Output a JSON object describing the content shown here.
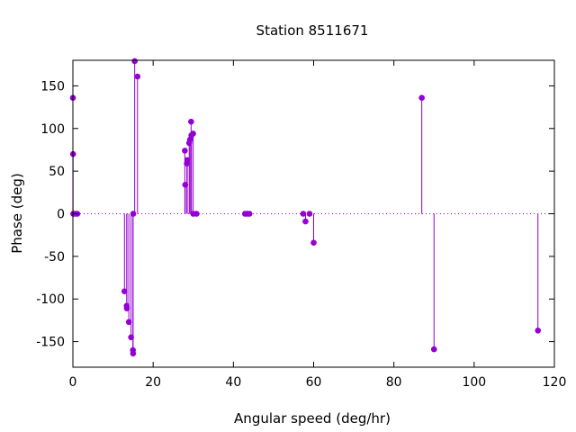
{
  "chart_data": {
    "type": "scatter",
    "title": "Station 8511671",
    "xlabel": "Angular speed (deg/hr)",
    "ylabel": "Phase (deg)",
    "xlim": [
      0,
      120
    ],
    "ylim": [
      -180,
      180
    ],
    "xticks": [
      0,
      20,
      40,
      60,
      80,
      100,
      120
    ],
    "yticks": [
      -150,
      -100,
      -50,
      0,
      50,
      100,
      150
    ],
    "grid": false,
    "legend": "none",
    "zero_line": "dotted",
    "style": "impulses-with-points",
    "color": "#9400d3",
    "points": [
      {
        "x": 0.0,
        "y": 136
      },
      {
        "x": 0.04,
        "y": 70
      },
      {
        "x": 0.08,
        "y": 0
      },
      {
        "x": 0.55,
        "y": 0
      },
      {
        "x": 1.1,
        "y": 0
      },
      {
        "x": 12.85,
        "y": -91
      },
      {
        "x": 13.4,
        "y": -108
      },
      {
        "x": 13.45,
        "y": -111
      },
      {
        "x": 13.94,
        "y": -127
      },
      {
        "x": 14.5,
        "y": -145
      },
      {
        "x": 14.96,
        "y": -160
      },
      {
        "x": 15.0,
        "y": -164
      },
      {
        "x": 15.04,
        "y": 0
      },
      {
        "x": 15.4,
        "y": 179
      },
      {
        "x": 16.1,
        "y": 161
      },
      {
        "x": 27.9,
        "y": 74
      },
      {
        "x": 28.0,
        "y": 34
      },
      {
        "x": 28.4,
        "y": 59
      },
      {
        "x": 28.5,
        "y": 63
      },
      {
        "x": 28.98,
        "y": 83
      },
      {
        "x": 29.2,
        "y": 87
      },
      {
        "x": 29.46,
        "y": 108
      },
      {
        "x": 29.53,
        "y": 92
      },
      {
        "x": 29.96,
        "y": 94
      },
      {
        "x": 30.0,
        "y": 0
      },
      {
        "x": 30.8,
        "y": 0
      },
      {
        "x": 42.9,
        "y": 0
      },
      {
        "x": 43.5,
        "y": 0
      },
      {
        "x": 44.0,
        "y": 0
      },
      {
        "x": 57.4,
        "y": 0
      },
      {
        "x": 57.97,
        "y": -9
      },
      {
        "x": 58.98,
        "y": 0
      },
      {
        "x": 60.0,
        "y": -34
      },
      {
        "x": 86.95,
        "y": 136
      },
      {
        "x": 90.0,
        "y": -159
      },
      {
        "x": 115.9,
        "y": -137
      }
    ]
  }
}
